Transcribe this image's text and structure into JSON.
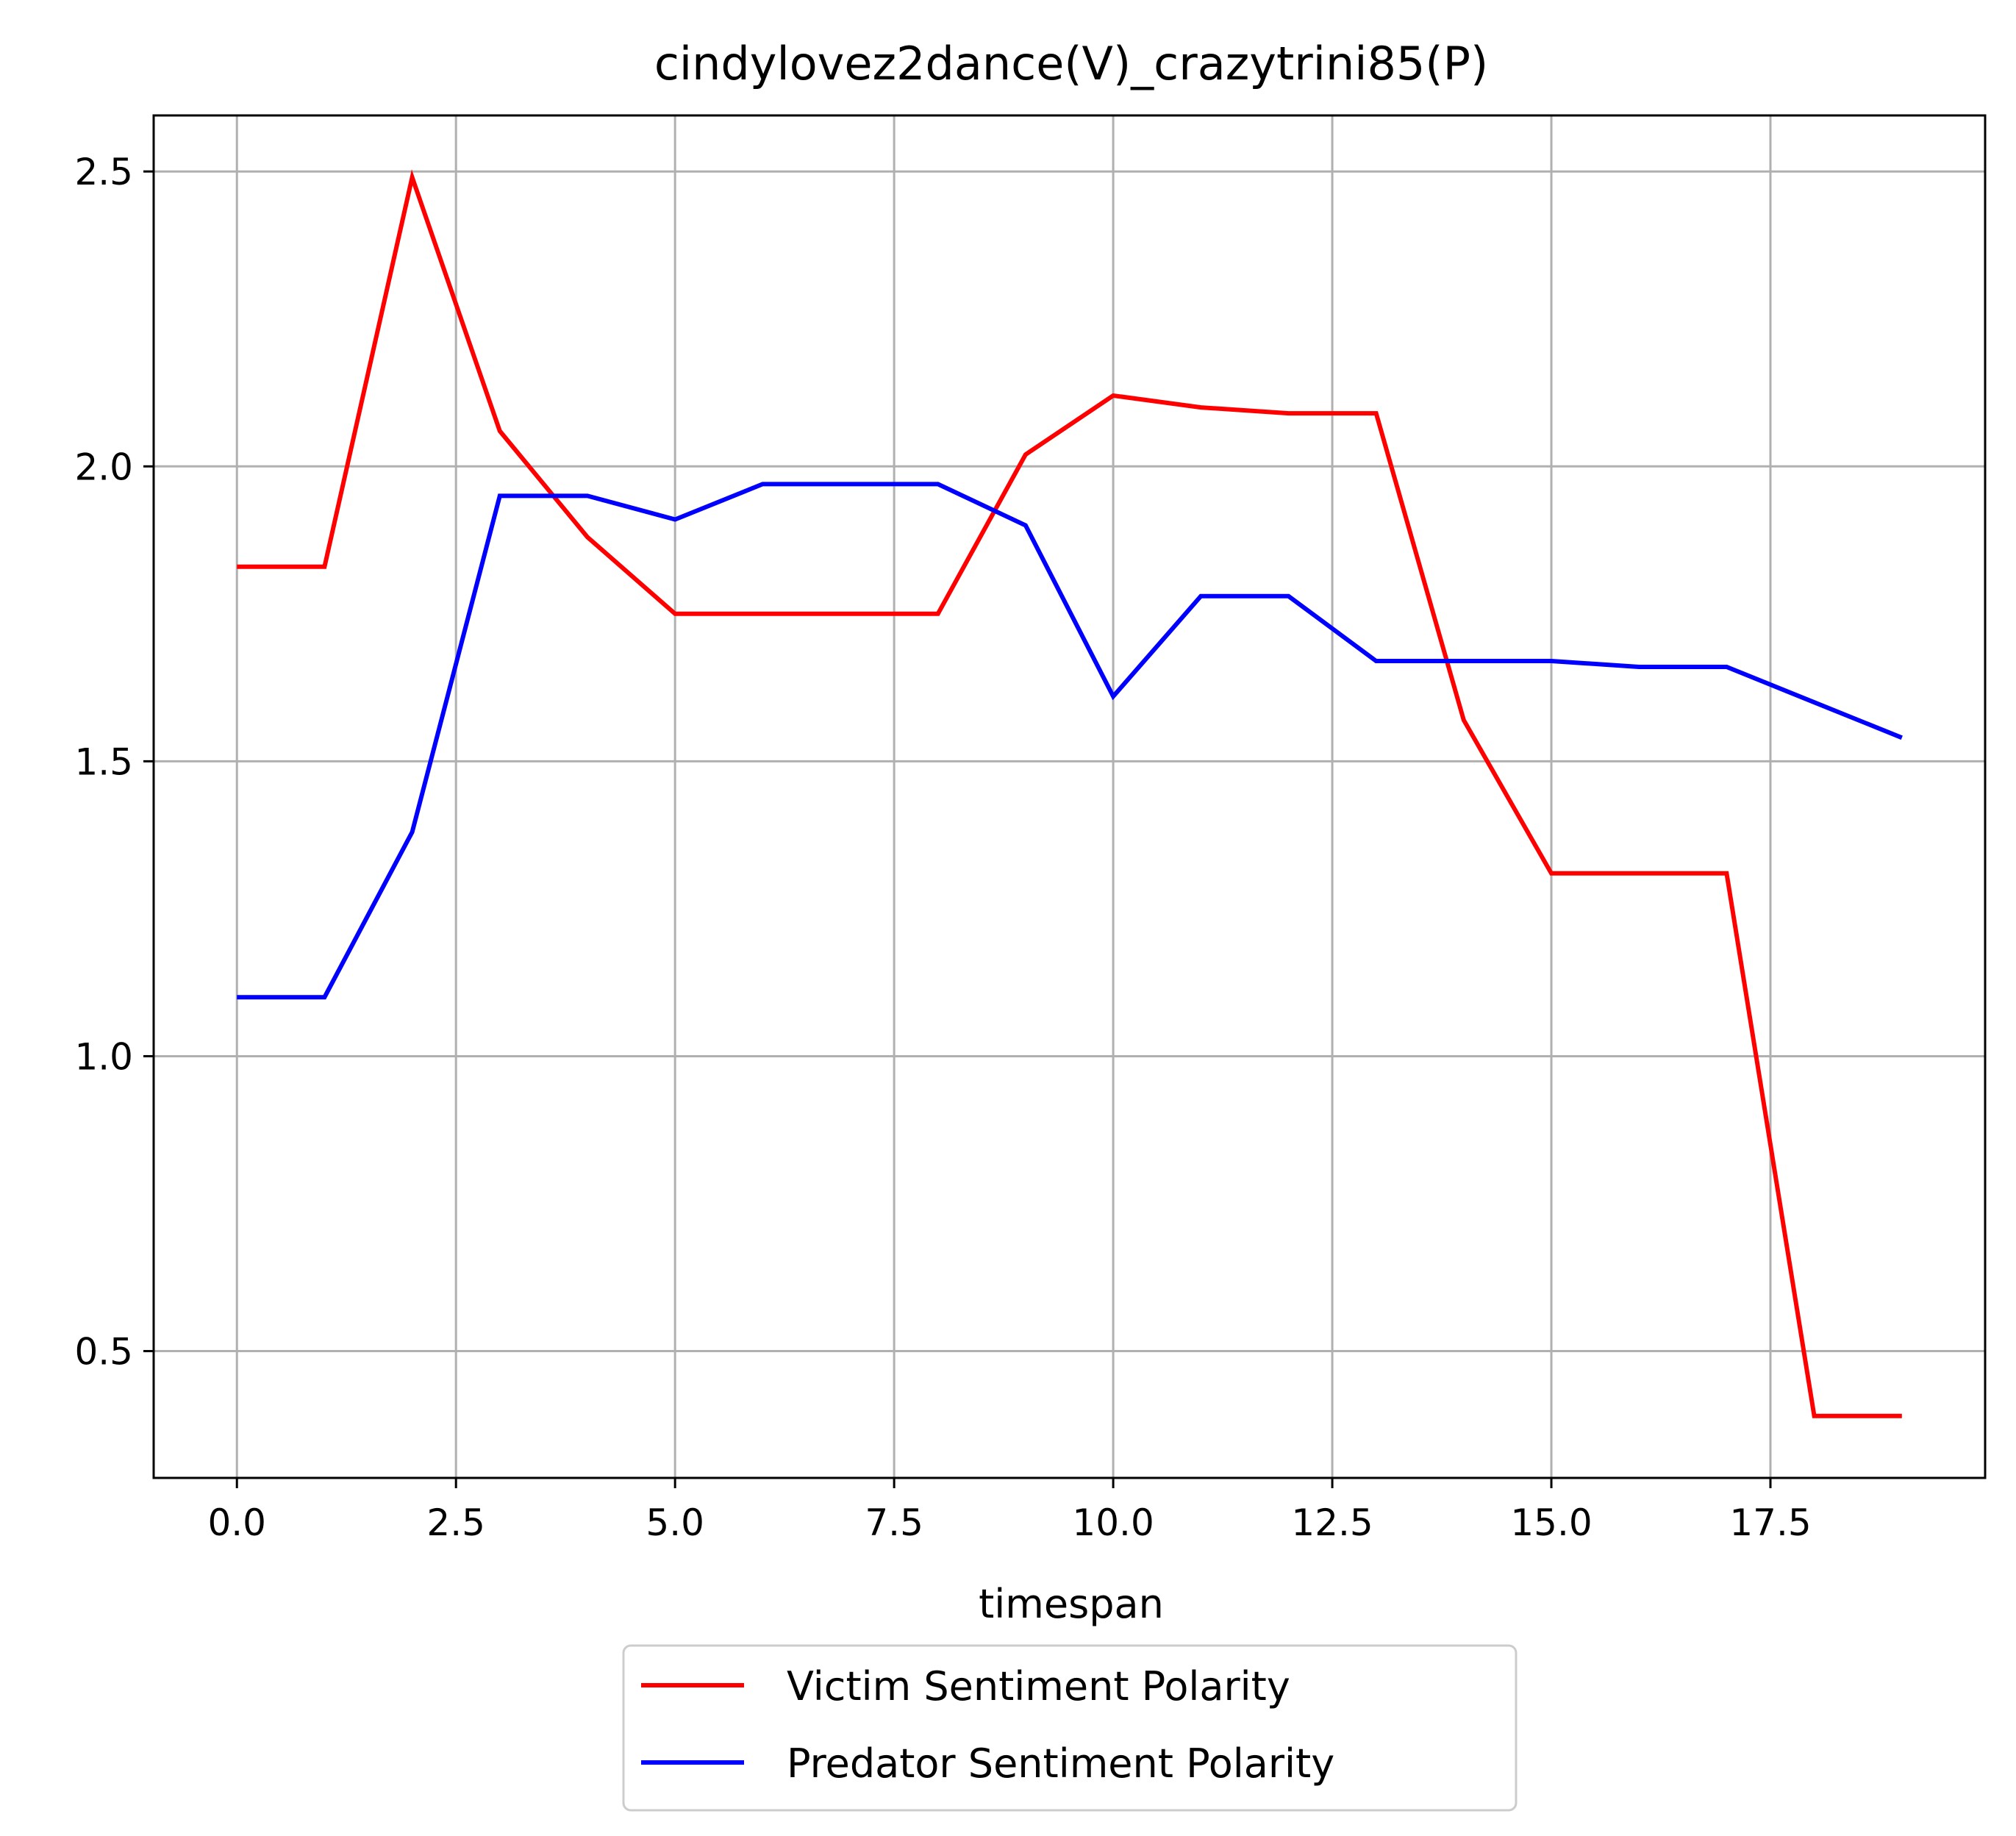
{
  "chart_data": {
    "type": "line",
    "title": "cindylovez2dance(V)_crazytrini85(P)",
    "xlabel": "timespan",
    "ylabel": "",
    "xlim": [
      -0.95,
      19.95
    ],
    "ylim": [
      0.285,
      2.595
    ],
    "xticks": [
      0.0,
      2.5,
      5.0,
      7.5,
      10.0,
      12.5,
      15.0,
      17.5
    ],
    "xtick_labels": [
      "0.0",
      "2.5",
      "5.0",
      "7.5",
      "10.0",
      "12.5",
      "15.0",
      "17.5"
    ],
    "yticks": [
      0.5,
      1.0,
      1.5,
      2.0,
      2.5
    ],
    "ytick_labels": [
      "0.5",
      "1.0",
      "1.5",
      "2.0",
      "2.5"
    ],
    "grid": true,
    "legend_position": "bottom-center-outside",
    "x": [
      0,
      1,
      2,
      3,
      4,
      5,
      6,
      7,
      8,
      9,
      10,
      11,
      12,
      13,
      14,
      15,
      16,
      17,
      18,
      19
    ],
    "series": [
      {
        "name": "Victim Sentiment Polarity",
        "color": "#ff0000",
        "values": [
          1.83,
          1.83,
          2.49,
          2.06,
          1.88,
          1.75,
          1.75,
          1.75,
          1.75,
          2.02,
          2.12,
          2.1,
          2.09,
          2.09,
          1.57,
          1.31,
          1.31,
          1.31,
          0.39,
          0.39
        ]
      },
      {
        "name": "Predator Sentiment Polarity",
        "color": "#0000ff",
        "values": [
          1.1,
          1.1,
          1.38,
          1.95,
          1.95,
          1.91,
          1.97,
          1.97,
          1.97,
          1.9,
          1.61,
          1.78,
          1.78,
          1.67,
          1.67,
          1.67,
          1.66,
          1.66,
          1.6,
          1.54
        ]
      }
    ]
  }
}
